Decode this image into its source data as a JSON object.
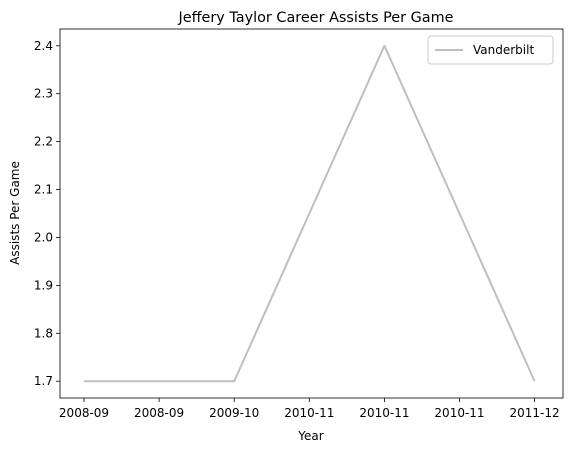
{
  "chart_data": {
    "type": "line",
    "title": "Jeffery Taylor Career Assists Per Game",
    "xlabel": "Year",
    "ylabel": "Assists Per Game",
    "categories": [
      "2008-09",
      "2008-09",
      "2009-10",
      "2010-11",
      "2010-11",
      "2010-11",
      "2011-12"
    ],
    "series": [
      {
        "name": "Vanderbilt",
        "values": [
          1.7,
          1.7,
          1.7,
          2.05,
          2.4,
          2.05,
          1.7
        ],
        "color": "#bfbfbf"
      }
    ],
    "ylim": [
      1.665,
      2.435
    ],
    "yticks": [
      "1.7",
      "1.8",
      "1.9",
      "2.0",
      "2.1",
      "2.2",
      "2.3",
      "2.4"
    ],
    "grid": false,
    "legend_position": "top-right"
  }
}
